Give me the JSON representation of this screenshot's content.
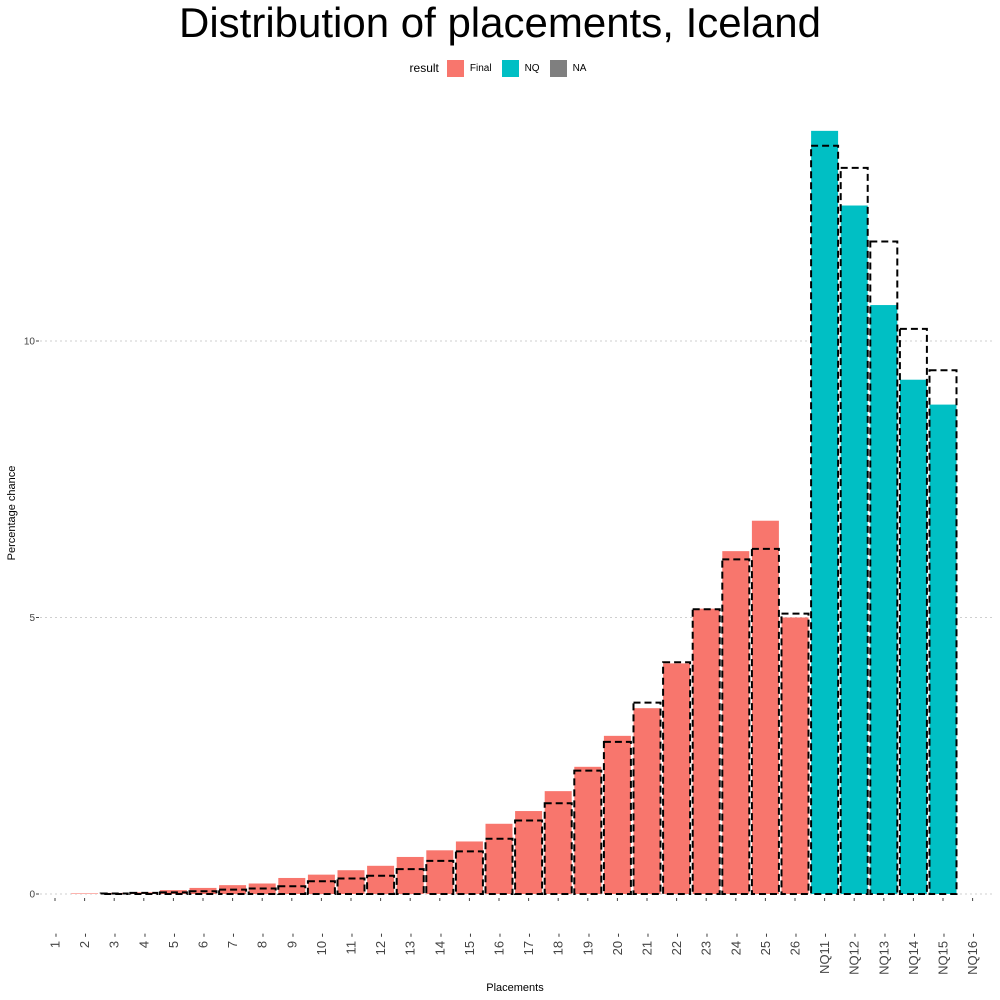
{
  "chart_data": {
    "type": "bar",
    "title": "Distribution of placements, Iceland",
    "xlabel": "Placements",
    "ylabel": "Percentage chance",
    "ylim": [
      0,
      13.8
    ],
    "yticks": [
      0,
      5,
      10
    ],
    "grid": true,
    "legend": {
      "title": "result",
      "position": "top",
      "entries": [
        {
          "name": "Final",
          "color": "#F8766D"
        },
        {
          "name": "NQ",
          "color": "#00BFC4"
        },
        {
          "name": "NA",
          "color": "#7F7F7F"
        }
      ]
    },
    "categories": [
      "1",
      "2",
      "3",
      "4",
      "5",
      "6",
      "7",
      "8",
      "9",
      "10",
      "11",
      "12",
      "13",
      "14",
      "15",
      "16",
      "17",
      "18",
      "19",
      "20",
      "21",
      "22",
      "23",
      "24",
      "25",
      "26",
      "NQ11",
      "NQ12",
      "NQ13",
      "NQ14",
      "NQ15",
      "NQ16"
    ],
    "series": [
      {
        "name": "Final",
        "color": "#F8766D",
        "values": [
          0,
          0.01,
          0.02,
          0.03,
          0.07,
          0.11,
          0.16,
          0.19,
          0.29,
          0.35,
          0.43,
          0.51,
          0.67,
          0.79,
          0.95,
          1.27,
          1.5,
          1.86,
          2.3,
          2.86,
          3.36,
          4.17,
          5.16,
          6.2,
          6.75,
          5.0,
          0,
          0,
          0,
          0,
          0,
          0
        ]
      },
      {
        "name": "NQ",
        "color": "#00BFC4",
        "values": [
          0,
          0,
          0,
          0,
          0,
          0,
          0,
          0,
          0,
          0,
          0,
          0,
          0,
          0,
          0,
          0,
          0,
          0,
          0,
          0,
          0,
          0,
          0,
          0,
          0,
          0,
          13.8,
          12.45,
          10.65,
          9.3,
          8.85,
          0
        ]
      }
    ],
    "reference_outline": {
      "style": "dashed",
      "values": [
        0,
        0,
        0.01,
        0.02,
        0.03,
        0.05,
        0.08,
        0.1,
        0.14,
        0.23,
        0.28,
        0.33,
        0.45,
        0.6,
        0.77,
        1.0,
        1.33,
        1.64,
        2.23,
        2.75,
        3.46,
        4.19,
        5.15,
        6.05,
        6.24,
        5.07,
        13.53,
        13.13,
        11.8,
        10.22,
        9.47,
        0
      ]
    }
  }
}
